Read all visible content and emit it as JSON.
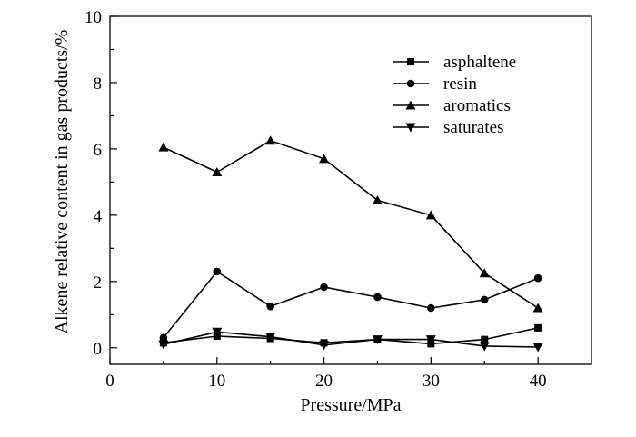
{
  "chart_data": {
    "type": "line",
    "xlabel": "Pressure/MPa",
    "ylabel": "Alkene relative content in gas products/%",
    "xlim": [
      0,
      45
    ],
    "ylim": [
      -0.5,
      10
    ],
    "x_ticks": [
      0,
      10,
      20,
      30,
      40
    ],
    "y_ticks": [
      0,
      2,
      4,
      6,
      8,
      10
    ],
    "x_ticks_minor": [
      5,
      15,
      25,
      35
    ],
    "y_ticks_minor": [
      1,
      3,
      5,
      7,
      9
    ],
    "legend_position": "top-right",
    "grid": false,
    "x": [
      5,
      10,
      15,
      20,
      25,
      30,
      35,
      40
    ],
    "series": [
      {
        "name": "asphaltene",
        "marker": "square",
        "values": [
          0.15,
          0.35,
          0.28,
          0.15,
          0.25,
          0.12,
          0.25,
          0.6
        ]
      },
      {
        "name": "resin",
        "marker": "circle",
        "values": [
          0.3,
          2.3,
          1.25,
          1.83,
          1.53,
          1.2,
          1.45,
          2.1
        ]
      },
      {
        "name": "aromatics",
        "marker": "triangle-up",
        "values": [
          6.05,
          5.3,
          6.25,
          5.7,
          4.45,
          4.0,
          2.25,
          1.2
        ]
      },
      {
        "name": "saturates",
        "marker": "triangle-down",
        "values": [
          0.1,
          0.48,
          0.33,
          0.08,
          0.25,
          0.25,
          0.05,
          0.02
        ]
      }
    ]
  }
}
